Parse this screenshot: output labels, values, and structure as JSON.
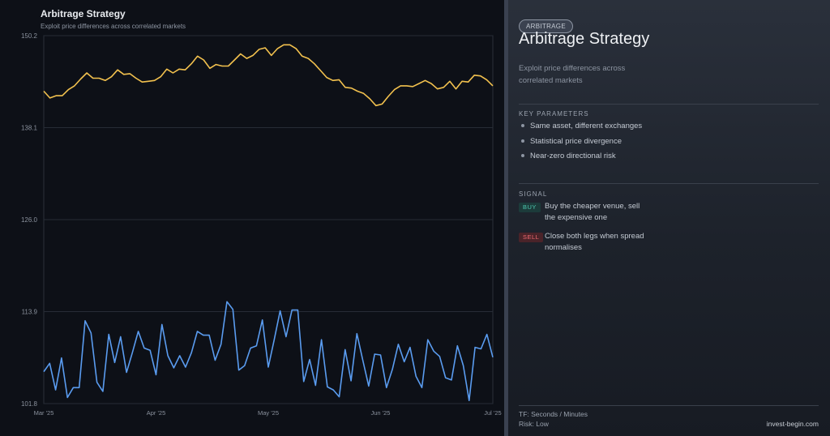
{
  "chart": {
    "title": "Arbitrage Strategy",
    "subtitle": "Exploit price differences across correlated markets"
  },
  "chart_data": {
    "type": "line",
    "title": "Arbitrage Strategy",
    "subtitle": "Exploit price differences across correlated markets",
    "ylim": [
      101.8,
      150.2
    ],
    "yticks": [
      "150.2",
      "138.1",
      "126.0",
      "113.9",
      "101.8"
    ],
    "xticks": [
      "Mar '25",
      "Apr '25",
      "May '25",
      "Jun '25",
      "Jul '25"
    ],
    "grid": true,
    "series": [
      {
        "color": "#f2c14e",
        "values": [
          142.9,
          142.0,
          142.3,
          142.3,
          143.1,
          143.6,
          144.5,
          145.3,
          144.6,
          144.6,
          144.3,
          144.8,
          145.7,
          145.1,
          145.2,
          144.6,
          144.1,
          144.2,
          144.3,
          144.8,
          145.8,
          145.3,
          145.8,
          145.7,
          146.5,
          147.5,
          147.0,
          145.9,
          146.4,
          146.2,
          146.2,
          147.0,
          147.8,
          147.2,
          147.6,
          148.4,
          148.6,
          147.6,
          148.5,
          149.0,
          149.0,
          148.5,
          147.5,
          147.2,
          146.5,
          145.6,
          144.7,
          144.3,
          144.4,
          143.4,
          143.3,
          142.9,
          142.6,
          141.9,
          141.0,
          141.2,
          142.2,
          143.1,
          143.6,
          143.6,
          143.5,
          143.9,
          144.3,
          143.9,
          143.2,
          143.4,
          144.2,
          143.2,
          144.2,
          144.1,
          145.0,
          144.9,
          144.4,
          143.6
        ]
      },
      {
        "color": "#5a9cf0",
        "values": [
          106.0,
          107.1,
          103.6,
          107.8,
          102.6,
          103.9,
          103.9,
          112.7,
          111.1,
          104.6,
          103.4,
          110.9,
          107.2,
          110.6,
          105.9,
          108.5,
          111.3,
          109.1,
          108.8,
          105.6,
          112.2,
          108.1,
          106.5,
          108.1,
          106.6,
          108.5,
          111.3,
          110.8,
          110.8,
          107.5,
          109.6,
          115.2,
          114.2,
          106.2,
          106.8,
          109.1,
          109.4,
          112.8,
          106.6,
          110.2,
          114.0,
          110.6,
          114.1,
          114.1,
          104.7,
          107.6,
          104.2,
          110.2,
          104.0,
          103.6,
          102.7,
          108.9,
          104.8,
          111.0,
          107.5,
          104.1,
          108.3,
          108.2,
          103.9,
          106.3,
          109.6,
          107.3,
          109.2,
          105.4,
          103.9,
          110.2,
          108.7,
          108.0,
          105.2,
          104.9,
          109.4,
          106.8,
          102.2,
          109.2,
          109.0,
          110.9,
          107.9
        ]
      }
    ]
  },
  "panel": {
    "badge": "ARBITRAGE",
    "title": "Arbitrage Strategy",
    "description": "Exploit price differences across correlated markets",
    "key_parameters_label": "KEY PARAMETERS",
    "key_parameters": [
      "Same asset, different exchanges",
      "Statistical price divergence",
      "Near-zero directional risk"
    ],
    "signal_label": "SIGNAL",
    "signals": [
      {
        "badge": "BUY",
        "text": "Buy the cheaper venue, sell the expensive one"
      },
      {
        "badge": "SELL",
        "text": "Close both legs when spread normalises"
      }
    ],
    "timeframe": "TF: Seconds / Minutes",
    "risk": "Risk: Low",
    "brand": "invest-begin.com"
  },
  "colors": {
    "yellow_series": "#f2c14e",
    "blue_series": "#5a9cf0",
    "buy": "#4dc9b0",
    "sell": "#f06a72"
  }
}
